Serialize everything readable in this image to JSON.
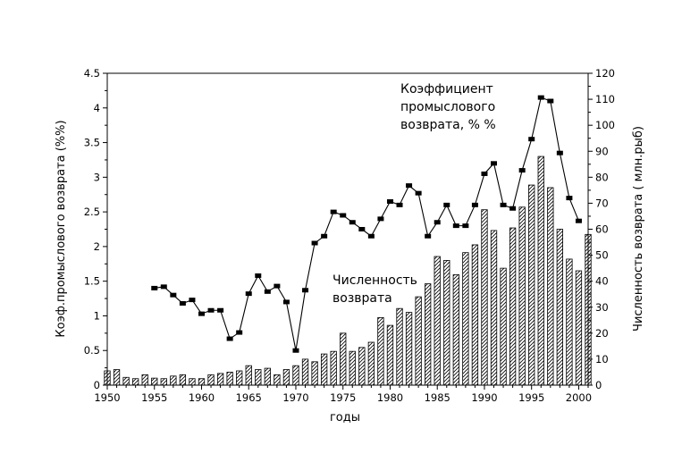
{
  "chart_data": {
    "type": "bar+line",
    "xlabel": "годы",
    "ylabel_left": "Коэф.промыслового возврата (%%)",
    "ylabel_right": "Численность возврата ( млн.рыб)",
    "xlim": [
      1950,
      2001
    ],
    "ylim_left": [
      0,
      4.5
    ],
    "ylim_right": [
      0,
      120
    ],
    "x_ticks": [
      1950,
      1955,
      1960,
      1965,
      1970,
      1975,
      1980,
      1985,
      1990,
      1995,
      2000
    ],
    "y_left_ticks": [
      "0",
      "0.5",
      "1",
      "1.5",
      "2",
      "2.5",
      "3",
      "3.5",
      "4",
      "4.5"
    ],
    "y_right_ticks": [
      "0",
      "10",
      "20",
      "30",
      "40",
      "50",
      "60",
      "70",
      "80",
      "90",
      "100",
      "110",
      "120"
    ],
    "annotations": {
      "line_label": [
        "Коэффициент",
        "промыслового",
        "возврата, % %"
      ],
      "bar_label": [
        "Численность",
        "возврата"
      ]
    },
    "series": [
      {
        "name": "Численность возврата",
        "type": "bar",
        "axis": "right",
        "style": "hatched",
        "x": [
          1950,
          1951,
          1952,
          1953,
          1954,
          1955,
          1956,
          1957,
          1958,
          1959,
          1960,
          1961,
          1962,
          1963,
          1964,
          1965,
          1966,
          1967,
          1968,
          1969,
          1970,
          1971,
          1972,
          1973,
          1974,
          1975,
          1976,
          1977,
          1978,
          1979,
          1980,
          1981,
          1982,
          1983,
          1984,
          1985,
          1986,
          1987,
          1988,
          1989,
          1990,
          1991,
          1992,
          1993,
          1994,
          1995,
          1996,
          1997,
          1998,
          1999,
          2000,
          2001
        ],
        "values": [
          5.5,
          6,
          3,
          2.5,
          4,
          2.7,
          2.5,
          3.5,
          4,
          2.5,
          2.5,
          4,
          4.5,
          5,
          5.5,
          7.5,
          6,
          6.5,
          4,
          6,
          7.5,
          10,
          9,
          12,
          13,
          20,
          13,
          14.5,
          16.5,
          26,
          23,
          29.5,
          28,
          34,
          39,
          49.5,
          48,
          42.5,
          51,
          54,
          67.5,
          59.5,
          45,
          60.5,
          68.5,
          77,
          88,
          76,
          60,
          48.5,
          44,
          58
        ]
      },
      {
        "name": "Коэффициент промыслового возврата, % %",
        "type": "line",
        "axis": "left",
        "x": [
          1955,
          1956,
          1957,
          1958,
          1959,
          1960,
          1961,
          1962,
          1963,
          1964,
          1965,
          1966,
          1967,
          1968,
          1969,
          1970,
          1971,
          1972,
          1973,
          1974,
          1975,
          1976,
          1977,
          1978,
          1979,
          1980,
          1981,
          1982,
          1983,
          1984,
          1985,
          1986,
          1987,
          1988,
          1989,
          1990,
          1991,
          1992,
          1993,
          1994,
          1995,
          1996,
          1997,
          1998,
          1999,
          2000
        ],
        "values": [
          1.4,
          1.42,
          1.3,
          1.18,
          1.23,
          1.03,
          1.08,
          1.08,
          0.67,
          0.76,
          1.32,
          1.58,
          1.35,
          1.43,
          1.2,
          0.5,
          1.37,
          2.05,
          2.15,
          2.5,
          2.45,
          2.35,
          2.25,
          2.15,
          2.4,
          2.65,
          2.6,
          2.88,
          2.77,
          2.15,
          2.35,
          2.6,
          2.3,
          2.3,
          2.6,
          3.05,
          3.2,
          2.6,
          2.55,
          3.1,
          3.55,
          4.15,
          4.1,
          3.35,
          2.7,
          2.37
        ]
      }
    ]
  }
}
